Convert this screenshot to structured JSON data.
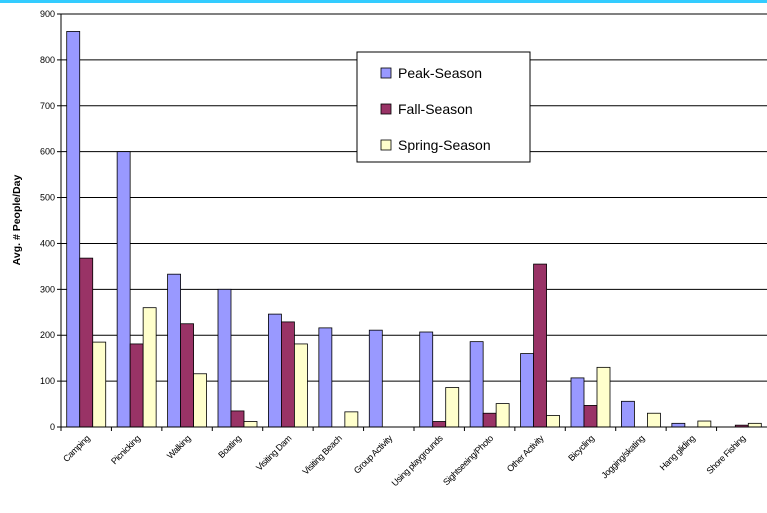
{
  "chart_data": {
    "type": "bar",
    "title": "",
    "xlabel": "",
    "ylabel": "Avg. # People/Day",
    "ylim": [
      0,
      900
    ],
    "yticks": [
      0,
      100,
      200,
      300,
      400,
      500,
      600,
      700,
      800,
      900
    ],
    "grid": true,
    "legend_position": "top-right",
    "categories": [
      "Camping",
      "Picnicking",
      "Walking",
      "Boating",
      "Visiting Dam",
      "Visiting Beach",
      "Group Activity",
      "Using playgrounds",
      "Sightseeing/Photo",
      "Other Activity",
      "Bicycling",
      "Jogging/skating",
      "Hang gliding",
      "Shore Fishing"
    ],
    "series": [
      {
        "name": "Peak-Season",
        "color": "#9999ff",
        "values": [
          862,
          600,
          333,
          300,
          246,
          216,
          211,
          207,
          186,
          160,
          107,
          56,
          8,
          0
        ]
      },
      {
        "name": "Fall-Season",
        "color": "#993366",
        "values": [
          368,
          181,
          225,
          35,
          229,
          0,
          0,
          12,
          30,
          355,
          47,
          0,
          0,
          4
        ]
      },
      {
        "name": "Spring-Season",
        "color": "#ffffcc",
        "values": [
          185,
          260,
          116,
          12,
          181,
          33,
          0,
          86,
          51,
          25,
          130,
          30,
          13,
          8
        ]
      }
    ]
  }
}
